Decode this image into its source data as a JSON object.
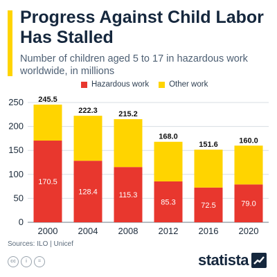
{
  "header": {
    "title": "Progress Against Child Labor Has Stalled",
    "subtitle": "Number of children aged 5 to 17 in hazardous work worldwide, in millions"
  },
  "colors": {
    "hazardous": "#e8372e",
    "other": "#ffd400",
    "accent": "#ffd400",
    "text": "#15273d"
  },
  "chart_data": {
    "type": "bar",
    "stacked": true,
    "categories": [
      "2000",
      "2004",
      "2008",
      "2012",
      "2016",
      "2020"
    ],
    "series": [
      {
        "name": "Hazardous work",
        "color": "#e8372e",
        "values": [
          170.5,
          128.4,
          115.3,
          85.3,
          72.5,
          79.0
        ]
      },
      {
        "name": "Other work",
        "color": "#ffd400",
        "values": [
          75.0,
          93.9,
          99.9,
          82.7,
          79.1,
          81.0
        ]
      }
    ],
    "totals": [
      245.5,
      222.3,
      215.2,
      168.0,
      151.6,
      160.0
    ],
    "totals_labels": [
      "245.5",
      "222.3",
      "215.2",
      "168.0",
      "151.6",
      "160.0"
    ],
    "hazardous_labels": [
      "170.5",
      "128.4",
      "115.3",
      "85.3",
      "72.5",
      "79.0"
    ],
    "ylim": [
      0,
      250
    ],
    "yticks": [
      0,
      50,
      100,
      150,
      200,
      250
    ],
    "grid": true,
    "legend_position": "top"
  },
  "source": "Sources: ILO | Unicef",
  "license_icons": [
    "cc",
    "i",
    "="
  ],
  "brand": "statista"
}
